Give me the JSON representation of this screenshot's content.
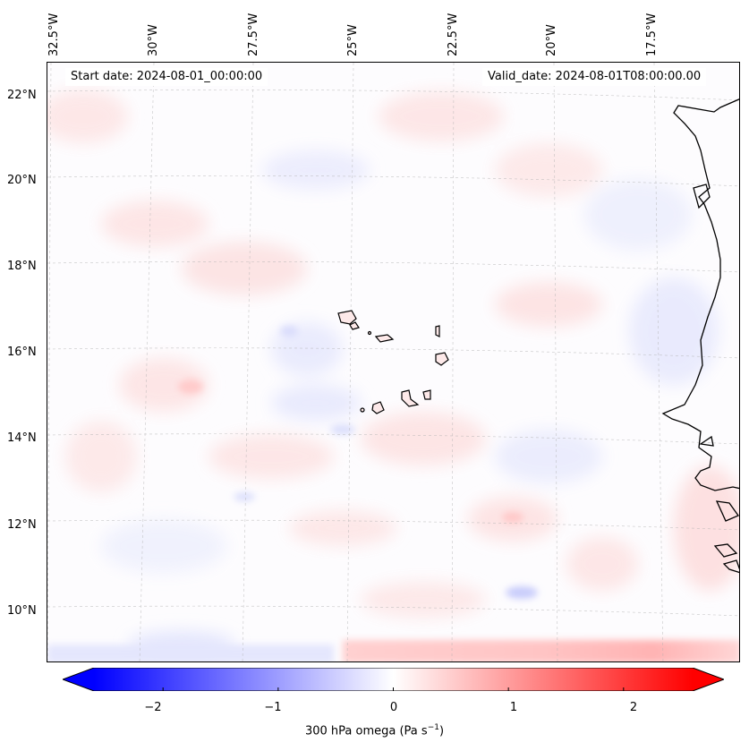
{
  "map": {
    "start_date": "Start date: 2024-08-01_00:00:00",
    "valid_date": "Valid_date: 2024-08-01T08:00:00.00",
    "longitude_labels": [
      "32.5°W",
      "30°W",
      "27.5°W",
      "25°W",
      "22.5°W",
      "20°W",
      "17.5°W"
    ],
    "latitude_labels": [
      "22°N",
      "20°N",
      "18°N",
      "16°N",
      "14°N",
      "12°N",
      "10°N"
    ],
    "variable": "300 hPa omega",
    "units": "Pa s",
    "units_exponent": "−1"
  },
  "colorbar": {
    "ticks": [
      "−2",
      "−1",
      "0",
      "1",
      "2"
    ],
    "vmin": -2.6,
    "vmax": 2.6,
    "colormap": "bwr",
    "low_color": "#0000ff",
    "mid_color": "#ffffff",
    "high_color": "#ff0000"
  }
}
